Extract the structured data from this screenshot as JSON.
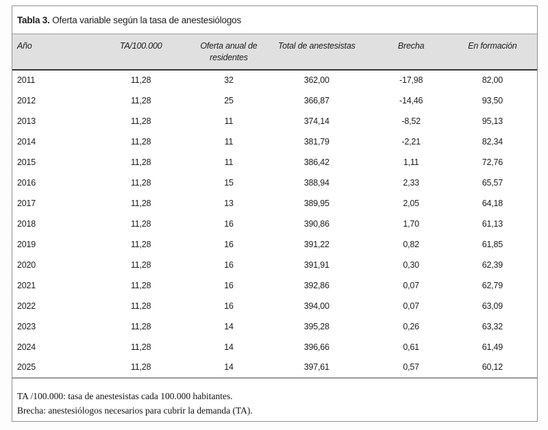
{
  "table": {
    "caption": {
      "label": "Tabla 3.",
      "text": "Oferta variable según la tasa de anestesiólogos"
    },
    "columns": [
      "Año",
      "TA/100.000",
      "Oferta anual de residentes",
      "Total de anestesistas",
      "Brecha",
      "En formación"
    ],
    "rows": [
      [
        "2011",
        "11,28",
        "32",
        "362,00",
        "-17,98",
        "82,00"
      ],
      [
        "2012",
        "11,28",
        "25",
        "366,87",
        "-14,46",
        "93,50"
      ],
      [
        "2013",
        "11,28",
        "11",
        "374,14",
        "-8,52",
        "95,13"
      ],
      [
        "2014",
        "11,28",
        "11",
        "381,79",
        "-2,21",
        "82,34"
      ],
      [
        "2015",
        "11,28",
        "11",
        "386,42",
        "1,11",
        "72,76"
      ],
      [
        "2016",
        "11,28",
        "15",
        "388,94",
        "2,33",
        "65,57"
      ],
      [
        "2017",
        "11,28",
        "13",
        "389,95",
        "2,05",
        "64,18"
      ],
      [
        "2018",
        "11,28",
        "16",
        "390,86",
        "1,70",
        "61,13"
      ],
      [
        "2019",
        "11,28",
        "16",
        "391,22",
        "0,82",
        "61,85"
      ],
      [
        "2020",
        "11,28",
        "16",
        "391,91",
        "0,30",
        "62,39"
      ],
      [
        "2021",
        "11,28",
        "16",
        "392,86",
        "0,07",
        "62,79"
      ],
      [
        "2022",
        "11,28",
        "16",
        "394,00",
        "0,07",
        "63,09"
      ],
      [
        "2023",
        "11,28",
        "14",
        "395,28",
        "0,26",
        "63,32"
      ],
      [
        "2024",
        "11,28",
        "14",
        "396,66",
        "0,61",
        "61,49"
      ],
      [
        "2025",
        "11,28",
        "14",
        "397,61",
        "0,57",
        "60,12"
      ]
    ],
    "notes": [
      "TA /100.000: tasa de anestesistas cada 100.000 habitantes.",
      "Brecha: anestesiólogos necesarios para cubrir la demanda (TA)."
    ],
    "colors": {
      "header_bg": "#e0e0e0",
      "frame_border": "#8f8f8f",
      "header_rule": "#333333",
      "bottom_rule": "#9a9a9a",
      "text": "#1c1c1c"
    }
  }
}
